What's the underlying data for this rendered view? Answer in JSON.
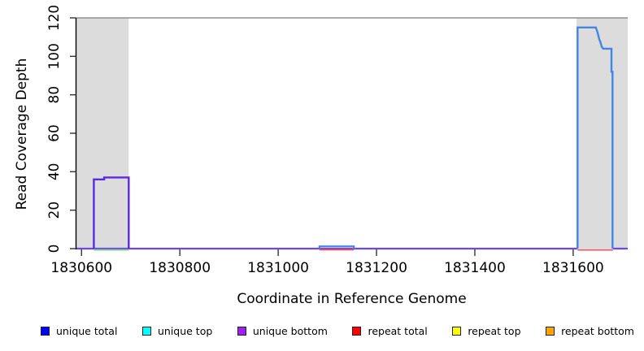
{
  "chart_data": {
    "type": "line",
    "title": "",
    "xlabel": "Coordinate in Reference Genome",
    "ylabel": "Read Coverage Depth",
    "xlim": [
      1830588,
      1831711
    ],
    "ylim": [
      0,
      120
    ],
    "grid": false,
    "legend_position": "bottom",
    "xticks": {
      "values": [
        1830600,
        1830800,
        1831000,
        1831200,
        1831400,
        1831600
      ],
      "labels": [
        "1830600",
        "1830800",
        "1831000",
        "1831200",
        "1831400",
        "1831600"
      ]
    },
    "yticks": {
      "values": [
        0,
        20,
        40,
        60,
        80,
        100,
        120
      ],
      "labels": [
        "0",
        "20",
        "40",
        "60",
        "80",
        "100",
        "120"
      ]
    },
    "max_depth_line": {
      "y": 120,
      "color": "#8f8f8f"
    },
    "shaded_regions": [
      {
        "name": "masked-region-left",
        "x0": 1830588,
        "x1": 1830696,
        "y0": 0,
        "y1": 120,
        "color": "#dcdcdc"
      },
      {
        "name": "masked-region-right",
        "x0": 1831607,
        "x1": 1831711,
        "y0": 0,
        "y1": 120,
        "color": "#dcdcdc"
      }
    ],
    "series": [
      {
        "name": "unique-bottom-baseline",
        "color": "#6f46ee",
        "width": 2.3,
        "points": [
          [
            1830588,
            0
          ],
          [
            1831609,
            0
          ]
        ]
      },
      {
        "name": "unique-bottom-baseline-right",
        "color": "#6f46ee",
        "width": 2.3,
        "points": [
          [
            1831681,
            0
          ],
          [
            1831711,
            0
          ]
        ]
      },
      {
        "name": "zero-line-green-left-region",
        "color": "#7fd87f",
        "width": 1.8,
        "dy": 1.6,
        "points": [
          [
            1830625,
            0
          ],
          [
            1830696,
            0
          ]
        ]
      },
      {
        "name": "repeat-zero-line-right-region",
        "color": "#ee5060",
        "width": 1.8,
        "dy": 1.6,
        "points": [
          [
            1831609,
            0
          ],
          [
            1831681,
            0
          ]
        ]
      },
      {
        "name": "repeat-zero-line-under-bump",
        "color": "#ee5060",
        "width": 1.8,
        "dy": 1.4,
        "points": [
          [
            1831084,
            0
          ],
          [
            1831154,
            0
          ]
        ]
      },
      {
        "name": "unique-coverage-left-block",
        "color": "#5a2ae2",
        "width": 2.4,
        "points": [
          [
            1830625,
            0
          ],
          [
            1830625,
            36
          ],
          [
            1830646,
            36
          ],
          [
            1830646,
            37
          ],
          [
            1830696,
            37
          ],
          [
            1830696,
            0
          ]
        ]
      },
      {
        "name": "unique-coverage-small-bump",
        "color": "#4285e8",
        "width": 2.2,
        "points": [
          [
            1831084,
            0
          ],
          [
            1831084,
            1.2
          ],
          [
            1831154,
            1.2
          ],
          [
            1831154,
            0
          ]
        ]
      },
      {
        "name": "unique-coverage-right-block",
        "color": "#4285e8",
        "width": 2.4,
        "points": [
          [
            1831609,
            0
          ],
          [
            1831609,
            115
          ],
          [
            1831646,
            115
          ],
          [
            1831649,
            113
          ],
          [
            1831651,
            111
          ],
          [
            1831653,
            109
          ],
          [
            1831656,
            107
          ],
          [
            1831658,
            105
          ],
          [
            1831661,
            104
          ],
          [
            1831678,
            104
          ],
          [
            1831678,
            92
          ],
          [
            1831680,
            92
          ],
          [
            1831680,
            0
          ]
        ]
      }
    ],
    "legend": {
      "items": [
        {
          "label": "unique total",
          "color": "#0000ff"
        },
        {
          "label": "unique top",
          "color": "#00ffff"
        },
        {
          "label": "unique bottom",
          "color": "#a020f0"
        },
        {
          "label": "repeat total",
          "color": "#ff0000"
        },
        {
          "label": "repeat top",
          "color": "#ffff00"
        },
        {
          "label": "repeat bottom",
          "color": "#ffa500"
        }
      ]
    },
    "axis_color": "#000000",
    "tick_color": "#333333"
  }
}
